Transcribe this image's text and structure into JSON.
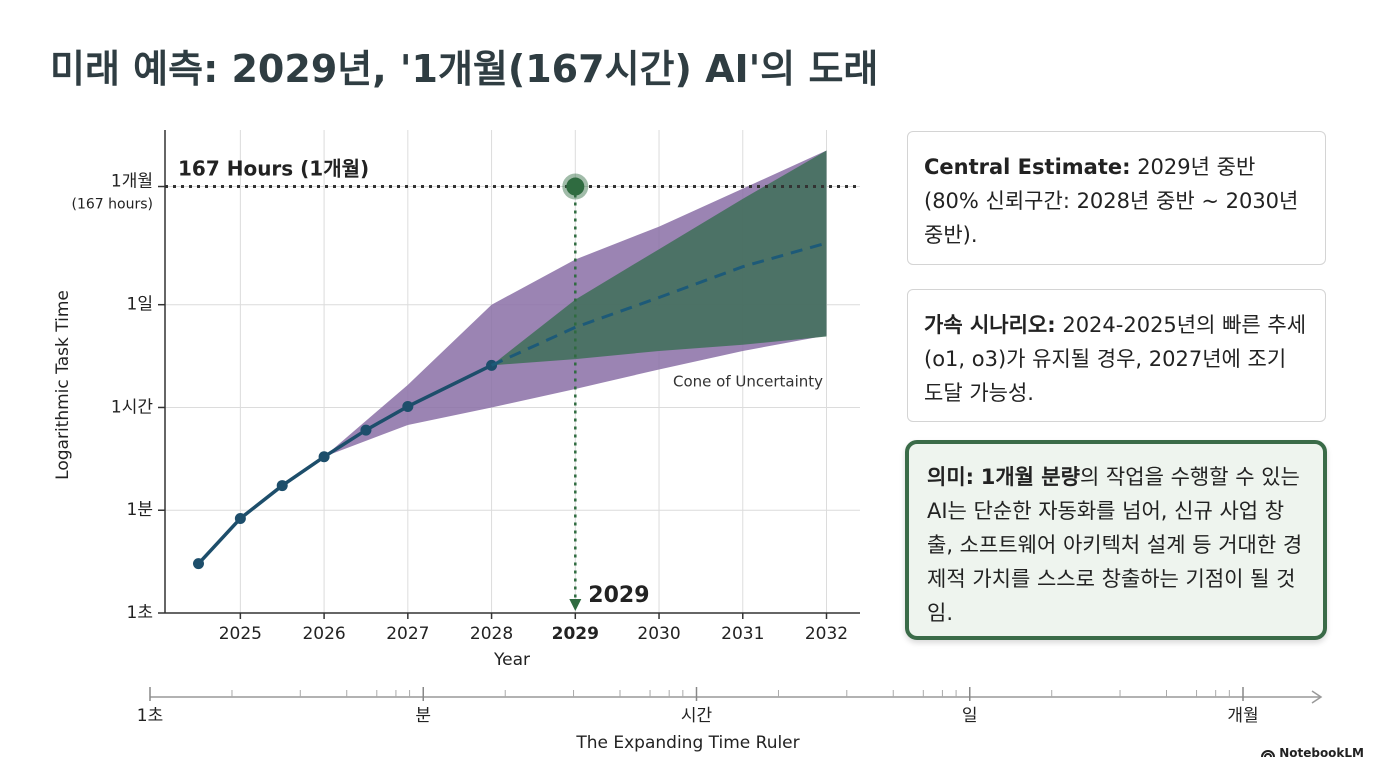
{
  "title": "미래 예측: 2029년, '1개월(167시간) AI'의 도래",
  "chart_data": {
    "type": "line",
    "x_label": "Year",
    "y_label": "Logarithmic Task Time",
    "xlim": [
      2024.1,
      2032.4
    ],
    "xticks": [
      2025,
      2026,
      2027,
      2028,
      2029,
      2030,
      2031,
      2032
    ],
    "ylim": [
      0,
      4.7
    ],
    "yticks": [
      {
        "value": 0,
        "label": "1초"
      },
      {
        "value": 1,
        "label": "1분"
      },
      {
        "value": 2,
        "label": "1시간"
      },
      {
        "value": 3,
        "label": "1일"
      },
      {
        "value": 4.15,
        "label": "1개월"
      }
    ],
    "ytick_note": "(167 hours)",
    "grid": true,
    "series": [
      {
        "x": [
          2024.5,
          2025,
          2025.5,
          2026,
          2026.5,
          2027,
          2028
        ],
        "values": [
          0.48,
          0.92,
          1.24,
          1.52,
          1.78,
          2.01,
          2.41
        ],
        "color": "#1d4e6b",
        "style": "solid",
        "markers": true
      },
      {
        "x": [
          2028,
          2029,
          2030,
          2031,
          2032
        ],
        "values": [
          2.41,
          2.78,
          3.07,
          3.37,
          3.6
        ],
        "color": "#1d5a78",
        "style": "dashed",
        "markers": false
      }
    ],
    "bands": [
      {
        "x": [
          2026,
          2027,
          2028,
          2029,
          2030,
          2031,
          2032
        ],
        "upper": [
          1.52,
          2.22,
          3.0,
          3.44,
          3.76,
          4.13,
          4.5
        ],
        "lower": [
          1.52,
          1.83,
          2.0,
          2.18,
          2.37,
          2.55,
          2.7
        ],
        "color": "#8a6fa6"
      },
      {
        "x": [
          2028,
          2029,
          2030,
          2031,
          2032
        ],
        "upper": [
          2.41,
          3.05,
          3.54,
          4.03,
          4.5
        ],
        "lower": [
          2.41,
          2.47,
          2.55,
          2.61,
          2.69
        ],
        "color": "#3e6e58"
      }
    ],
    "band_label": "Cone of Uncertainty",
    "target": {
      "x": 2029,
      "value": 4.15,
      "label": "167 Hours (1개월)",
      "x_label": "2029",
      "color": "#2f6b40"
    }
  },
  "ruler": {
    "title": "The Expanding Time Ruler",
    "labels": [
      "1초",
      "분",
      "시간",
      "일",
      "개월"
    ]
  },
  "notes": [
    {
      "label": "Central Estimate:",
      "text": "2029년 중반 (80% 신뢰구간: 2028년 중반 ~ 2030년 중반)."
    },
    {
      "label": "가속 시나리오:",
      "text": "2024-2025년의 빠른 추세(o1, o3)가 유지될 경우, 2027년에 조기 도달 가능성."
    },
    {
      "label": "의미:",
      "emphasis": "1개월 분량",
      "text": "의 작업을 수행할 수 있는 AI는 단순한 자동화를 넘어, 신규 사업 창출, 소프트웨어 아키텍처 설계 등 거대한 경제적 가치를 스스로 창출하는 기점이 될 것임."
    }
  ],
  "brand": "NotebookLM"
}
